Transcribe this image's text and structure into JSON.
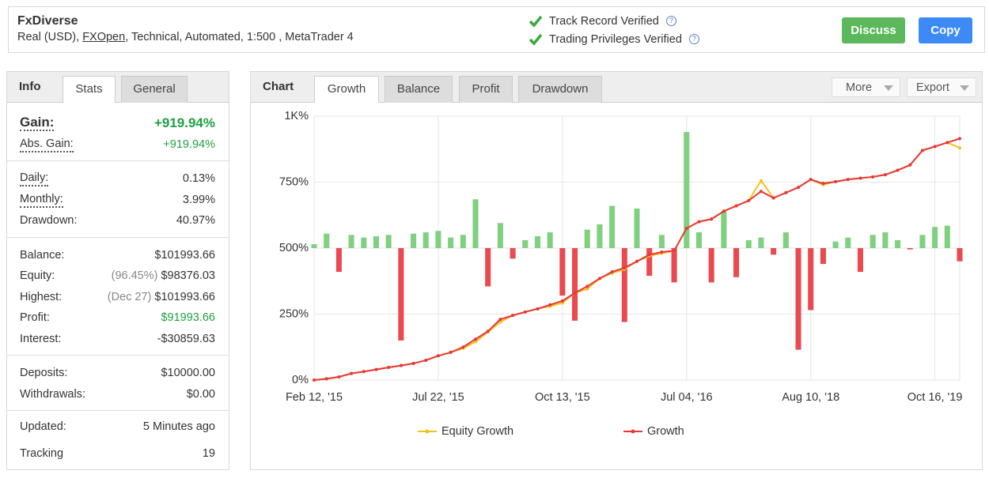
{
  "header": {
    "title": "FxDiverse",
    "subtitle_start": "Real (USD), ",
    "broker": "FXOpen",
    "subtitle_end": ", Technical, Automated, 1:500 , MetaTrader 4",
    "verified": [
      "Track Record Verified",
      "Trading Privileges Verified"
    ],
    "help_icon": "?",
    "buttons": [
      "Discuss",
      "Copy"
    ]
  },
  "info": {
    "tabs": [
      "Info",
      "Stats",
      "General"
    ],
    "groups": [
      [
        {
          "label": "Gain:",
          "value": "+919.94%"
        },
        {
          "label": "Abs. Gain:",
          "value": "+919.94%"
        }
      ],
      [
        {
          "label": "Daily:",
          "value": "0.13%"
        },
        {
          "label": "Monthly:",
          "value": "3.99%"
        },
        {
          "label": "Drawdown:",
          "value": "40.97%"
        }
      ],
      [
        {
          "label": "Balance:",
          "value": "$101993.66"
        },
        {
          "label": "Equity:",
          "note": "(96.45%)",
          "value": "$98376.03"
        },
        {
          "label": "Highest:",
          "note": "(Dec 27)",
          "value": "$101993.66"
        },
        {
          "label": "Profit:",
          "value": "$91993.66"
        },
        {
          "label": "Interest:",
          "value": "-$30859.63"
        }
      ],
      [
        {
          "label": "Deposits:",
          "value": "$10000.00"
        },
        {
          "label": "Withdrawals:",
          "value": "$0.00"
        }
      ],
      [
        {
          "label": "Updated:",
          "value": "5 Minutes ago"
        },
        {
          "label": "Tracking",
          "value": "19"
        }
      ]
    ]
  },
  "chart_panel": {
    "title": "Chart",
    "tabs": [
      "Growth",
      "Balance",
      "Profit",
      "Drawdown"
    ],
    "menus": [
      "More",
      "Export"
    ]
  },
  "chart_data": {
    "type": "line",
    "categories": [
      "Feb 12, '15",
      null,
      null,
      null,
      null,
      null,
      null,
      null,
      null,
      null,
      "Jul 22, '15",
      null,
      null,
      null,
      null,
      null,
      null,
      null,
      null,
      null,
      "Oct 13, '15",
      null,
      null,
      null,
      null,
      null,
      null,
      null,
      null,
      null,
      "Jul 04, '16",
      null,
      null,
      null,
      null,
      null,
      null,
      null,
      null,
      null,
      "Aug 10, '18",
      null,
      null,
      null,
      null,
      null,
      null,
      null,
      null,
      null,
      "Oct 16, '19",
      null,
      null
    ],
    "ylim": [
      0,
      1000
    ],
    "yticks": [
      {
        "value": 0,
        "label": "0%"
      },
      {
        "value": 250,
        "label": "250%"
      },
      {
        "value": 500,
        "label": "500%"
      },
      {
        "value": 750,
        "label": "750%"
      },
      {
        "value": 1000,
        "label": "1K%"
      }
    ],
    "y2lim": [
      -100,
      100
    ],
    "grid": true,
    "series": [
      {
        "name": "Equity Growth",
        "color": "#f2c21b",
        "values": [
          0,
          5,
          12,
          25,
          32,
          40,
          48,
          55,
          63,
          75,
          92,
          105,
          120,
          145,
          182,
          220,
          245,
          258,
          270,
          280,
          292,
          330,
          345,
          385,
          405,
          420,
          450,
          470,
          480,
          490,
          575,
          600,
          610,
          640,
          660,
          680,
          755,
          690,
          710,
          730,
          760,
          740,
          752,
          760,
          765,
          770,
          778,
          795,
          815,
          870,
          885,
          900,
          880
        ]
      },
      {
        "name": "Growth",
        "color": "#e8363a",
        "values": [
          0,
          5,
          12,
          25,
          32,
          40,
          48,
          55,
          63,
          75,
          92,
          105,
          125,
          155,
          185,
          230,
          245,
          258,
          270,
          285,
          300,
          330,
          355,
          385,
          410,
          425,
          450,
          475,
          485,
          490,
          575,
          600,
          610,
          640,
          660,
          680,
          715,
          690,
          710,
          730,
          760,
          745,
          752,
          760,
          765,
          770,
          778,
          795,
          815,
          870,
          885,
          900,
          915
        ]
      }
    ],
    "bars": {
      "axis": "y2",
      "positive_color": "#7fd07f",
      "negative_color": "#ea4a4f",
      "values": [
        3,
        11,
        -18,
        10,
        8,
        9,
        10,
        -70,
        11,
        12,
        13,
        8,
        10,
        37,
        -29,
        19,
        -8,
        6,
        9,
        12,
        -36,
        -55,
        14,
        18,
        32,
        -56,
        30,
        -21,
        10,
        -26,
        88,
        12,
        -26,
        28,
        -22,
        6,
        8,
        -5,
        12,
        -77,
        -47,
        -12,
        5,
        8,
        -18,
        10,
        12,
        6,
        -1,
        10,
        16,
        17,
        -10
      ]
    },
    "legend": "bottom"
  }
}
